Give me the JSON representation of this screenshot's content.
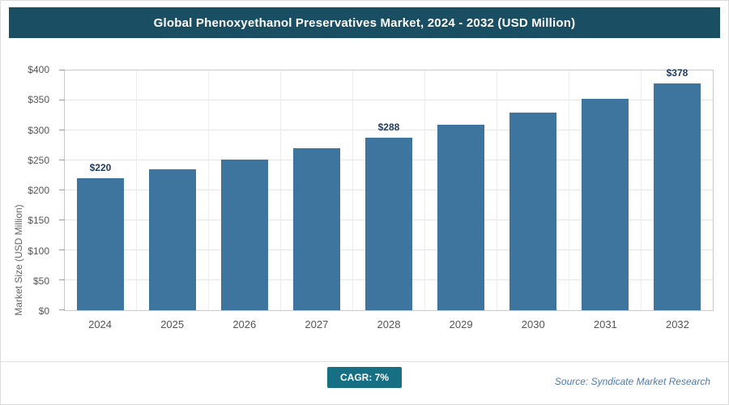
{
  "header": {
    "title": "Global Phenoxyethanol Preservatives Market, 2024 - 2032 (USD Million)",
    "bg_color": "#1a4f63"
  },
  "chart_data": {
    "type": "bar",
    "title": "Global Phenoxyethanol Preservatives Market, 2024 - 2032 (USD Million)",
    "categories": [
      "2024",
      "2025",
      "2026",
      "2027",
      "2028",
      "2029",
      "2030",
      "2031",
      "2032"
    ],
    "values": [
      220,
      235,
      252,
      270,
      288,
      309,
      330,
      353,
      378
    ],
    "data_labels": [
      "$220",
      null,
      null,
      null,
      "$288",
      null,
      null,
      null,
      "$378"
    ],
    "xlabel": "",
    "ylabel": "Market Size (USD Million)",
    "ylim": [
      0,
      400
    ],
    "ytick_step": 50,
    "ytick_labels": [
      "$0",
      "$50",
      "$100",
      "$150",
      "$200",
      "$250",
      "$300",
      "$350",
      "$400"
    ],
    "grid": true,
    "legend": "none",
    "bar_color": "#3e759e"
  },
  "footer": {
    "cagr_label": "CAGR: 7%",
    "cagr_bg": "#166f83",
    "source": "Source: Syndicate Market Research",
    "source_color": "#4a7ab5"
  }
}
